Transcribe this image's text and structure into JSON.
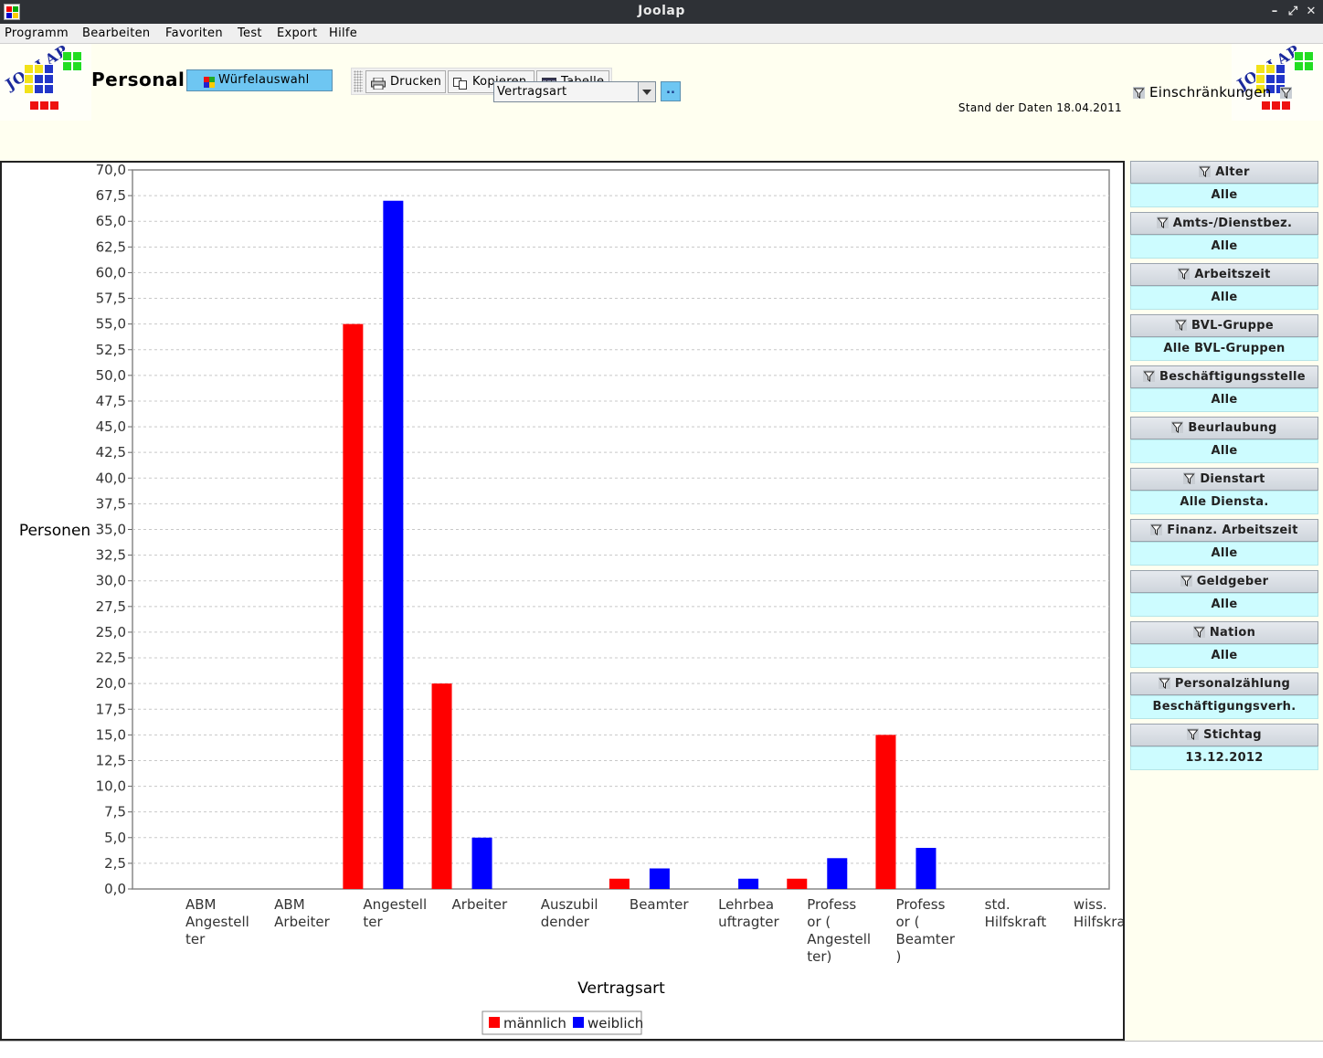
{
  "window": {
    "title": "Joolap"
  },
  "menu": [
    "Programm",
    "Bearbeiten",
    "Favoriten",
    "Test",
    "Export",
    "Hilfe"
  ],
  "header": {
    "logo_text": "JOOLAP",
    "page_title": "Personal",
    "cube_button": "Würfelauswahl",
    "toolbar": {
      "print": "Drucken",
      "copy": "Kopieren",
      "table": "Tabelle"
    },
    "dimension_select": "Vertragsart",
    "dots_button": "..",
    "data_status": "Stand der Daten 18.04.2011",
    "restrictions_title": "Einschränkungen"
  },
  "filters": [
    {
      "label": "Alter",
      "value": "Alle"
    },
    {
      "label": "Amts-/Dienstbez.",
      "value": "Alle"
    },
    {
      "label": "Arbeitszeit",
      "value": "Alle"
    },
    {
      "label": "BVL-Gruppe",
      "value": "Alle BVL-Gruppen"
    },
    {
      "label": "Beschäftigungsstelle",
      "value": "Alle"
    },
    {
      "label": "Beurlaubung",
      "value": "Alle"
    },
    {
      "label": "Dienstart",
      "value": "Alle Diensta."
    },
    {
      "label": "Finanz. Arbeitszeit",
      "value": "Alle"
    },
    {
      "label": "Geldgeber",
      "value": "Alle"
    },
    {
      "label": "Nation",
      "value": "Alle"
    },
    {
      "label": "Personalzählung",
      "value": "Beschäftigungsverh."
    },
    {
      "label": "Stichtag",
      "value": "13.12.2012"
    }
  ],
  "chart_data": {
    "type": "bar",
    "xlabel": "Vertragsart",
    "ylabel": "Personen",
    "ylim": [
      0,
      70
    ],
    "ytick_step": 2.5,
    "grid": true,
    "legend": "bottom",
    "categories": [
      [
        "ABM",
        "Angestell",
        "ter"
      ],
      [
        "ABM",
        "Arbeiter"
      ],
      [
        "Angestell",
        "ter"
      ],
      [
        "Arbeiter"
      ],
      [
        "Auszubil",
        "dender"
      ],
      [
        "Beamter"
      ],
      [
        "Lehrbea",
        "uftragter"
      ],
      [
        "Profess",
        "or (",
        "Angestell",
        "ter)"
      ],
      [
        "Profess",
        "or (",
        "Beamter",
        ")"
      ],
      [
        "std.",
        "Hilfskraft"
      ],
      [
        "wiss.",
        "Hilfskraft"
      ]
    ],
    "series": [
      {
        "name": "männlich",
        "color": "#ff0000",
        "values": [
          0,
          0,
          55,
          20,
          0,
          1,
          0,
          1,
          15,
          0,
          0
        ]
      },
      {
        "name": "weiblich",
        "color": "#0000ff",
        "values": [
          0,
          0,
          67,
          5,
          0,
          2,
          1,
          3,
          4,
          0,
          0
        ]
      }
    ]
  }
}
